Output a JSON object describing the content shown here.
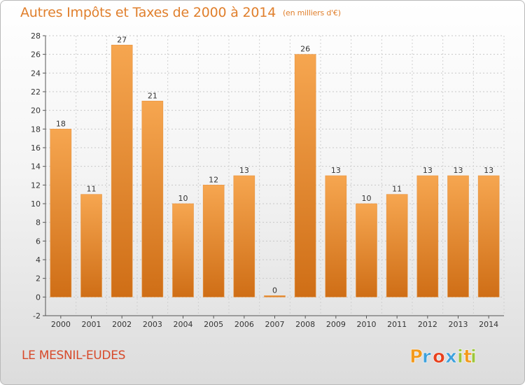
{
  "header": {
    "title": "Autres Impôts et Taxes de 2000 à 2014",
    "unit": "(en milliers d'€)"
  },
  "footer": {
    "location": "LE MESNIL-EUDES",
    "brand": "Proxiti",
    "brand_colors": [
      "#f39a1c",
      "#3ea1dc",
      "#e8401c",
      "#3ea1dc",
      "#9bc63c",
      "#f39a1c",
      "#9bc63c"
    ]
  },
  "colors": {
    "bar_top": "#f6a650",
    "bar_bottom": "#cf6e16",
    "title": "#e07f2c",
    "location": "#d7492a"
  },
  "chart_data": {
    "type": "bar",
    "title": "Autres Impôts et Taxes de 2000 à 2014",
    "subtitle": "(en milliers d'€)",
    "xlabel": "",
    "ylabel": "",
    "categories": [
      "2000",
      "2001",
      "2002",
      "2003",
      "2004",
      "2005",
      "2006",
      "2007",
      "2008",
      "2009",
      "2010",
      "2011",
      "2012",
      "2013",
      "2014"
    ],
    "values": [
      18,
      11,
      27,
      21,
      10,
      12,
      13,
      0,
      26,
      13,
      10,
      11,
      13,
      13,
      13
    ],
    "ylim": [
      -2,
      28
    ],
    "yticks": [
      -2,
      0,
      2,
      4,
      6,
      8,
      10,
      12,
      14,
      16,
      18,
      20,
      22,
      24,
      26,
      28
    ],
    "grid": true,
    "legend": "none"
  }
}
